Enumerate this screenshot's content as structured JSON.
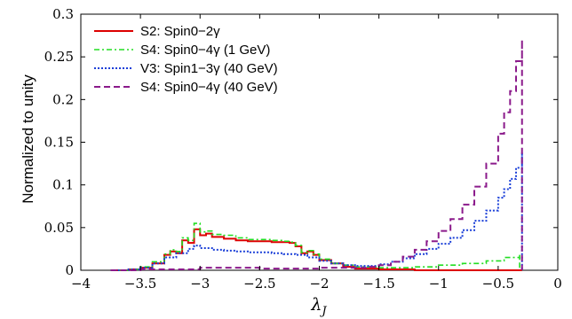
{
  "chart_data": {
    "type": "line",
    "title": "",
    "xlabel": "λ_J",
    "ylabel": "Normalized to unity",
    "xlim": [
      -4,
      0
    ],
    "ylim": [
      0,
      0.3
    ],
    "xticks": [
      -4,
      -3.5,
      -3,
      -2.5,
      -2,
      -1.5,
      -1,
      -0.5,
      0
    ],
    "xtick_labels": [
      "−4",
      "−3.5",
      "−3",
      "−2.5",
      "−2",
      "−1.5",
      "−1",
      "−0.5",
      "0"
    ],
    "yticks": [
      0,
      0.05,
      0.1,
      0.15,
      0.2,
      0.25,
      0.3
    ],
    "ytick_labels": [
      "0",
      "0.05",
      "0.1",
      "0.15",
      "0.2",
      "0.25",
      "0.3"
    ],
    "legend_position": "top-left",
    "grid": false,
    "series": [
      {
        "name": "S2: Spin0−2γ",
        "color": "#dd0000",
        "style": "solid",
        "x": [
          -3.75,
          -3.6,
          -3.5,
          -3.4,
          -3.3,
          -3.25,
          -3.2,
          -3.15,
          -3.1,
          -3.05,
          -3.0,
          -2.95,
          -2.9,
          -2.8,
          -2.7,
          -2.6,
          -2.5,
          -2.4,
          -2.3,
          -2.25,
          -2.2,
          -2.15,
          -2.1,
          -2.05,
          -2.0,
          -1.9,
          -1.8,
          -1.7,
          -1.5,
          -1.2,
          -1.0,
          -0.6,
          -0.3
        ],
        "y": [
          0.0,
          0.001,
          0.003,
          0.008,
          0.018,
          0.022,
          0.02,
          0.035,
          0.032,
          0.048,
          0.041,
          0.043,
          0.039,
          0.037,
          0.035,
          0.034,
          0.034,
          0.033,
          0.033,
          0.032,
          0.028,
          0.02,
          0.022,
          0.018,
          0.012,
          0.008,
          0.004,
          0.002,
          0.001,
          0.0,
          0.0,
          0.0,
          0.0
        ]
      },
      {
        "name": "S4: Spin0−4γ (1 GeV)",
        "color": "#22dd22",
        "style": "dashdot",
        "x": [
          -3.75,
          -3.6,
          -3.5,
          -3.4,
          -3.3,
          -3.25,
          -3.2,
          -3.15,
          -3.1,
          -3.05,
          -3.0,
          -2.95,
          -2.9,
          -2.8,
          -2.7,
          -2.6,
          -2.5,
          -2.4,
          -2.3,
          -2.25,
          -2.2,
          -2.15,
          -2.1,
          -2.05,
          -2.0,
          -1.9,
          -1.8,
          -1.7,
          -1.5,
          -1.2,
          -1.0,
          -0.8,
          -0.6,
          -0.45,
          -0.32
        ],
        "y": [
          0.0,
          0.001,
          0.004,
          0.01,
          0.019,
          0.024,
          0.022,
          0.038,
          0.035,
          0.055,
          0.045,
          0.046,
          0.042,
          0.041,
          0.038,
          0.036,
          0.036,
          0.035,
          0.034,
          0.033,
          0.029,
          0.021,
          0.023,
          0.019,
          0.013,
          0.008,
          0.006,
          0.004,
          0.003,
          0.004,
          0.006,
          0.008,
          0.011,
          0.015,
          0.018
        ]
      },
      {
        "name": "V3: Spin1−3γ (40 GeV)",
        "color": "#1a3fd8",
        "style": "dotted",
        "x": [
          -3.75,
          -3.6,
          -3.5,
          -3.4,
          -3.3,
          -3.2,
          -3.1,
          -3.05,
          -3.0,
          -2.9,
          -2.8,
          -2.7,
          -2.6,
          -2.5,
          -2.4,
          -2.3,
          -2.2,
          -2.1,
          -2.0,
          -1.9,
          -1.8,
          -1.7,
          -1.6,
          -1.5,
          -1.4,
          -1.3,
          -1.2,
          -1.1,
          -1.0,
          -0.9,
          -0.8,
          -0.7,
          -0.6,
          -0.5,
          -0.45,
          -0.4,
          -0.35,
          -0.3
        ],
        "y": [
          0.0,
          0.001,
          0.003,
          0.008,
          0.015,
          0.02,
          0.025,
          0.029,
          0.026,
          0.024,
          0.023,
          0.022,
          0.021,
          0.021,
          0.02,
          0.019,
          0.018,
          0.015,
          0.011,
          0.008,
          0.006,
          0.005,
          0.005,
          0.007,
          0.01,
          0.014,
          0.019,
          0.025,
          0.031,
          0.038,
          0.047,
          0.058,
          0.07,
          0.085,
          0.095,
          0.107,
          0.12,
          0.138
        ]
      },
      {
        "name": "S4: Spin0−4γ (40 GeV)",
        "color": "#8b1a8b",
        "style": "dashed",
        "x": [
          -3.75,
          -3.5,
          -3.0,
          -2.5,
          -2.0,
          -1.8,
          -1.6,
          -1.5,
          -1.4,
          -1.3,
          -1.2,
          -1.1,
          -1.0,
          -0.9,
          -0.8,
          -0.7,
          -0.6,
          -0.5,
          -0.45,
          -0.4,
          -0.35,
          -0.3
        ],
        "y": [
          0.0,
          0.001,
          0.003,
          0.002,
          0.003,
          0.003,
          0.004,
          0.006,
          0.01,
          0.016,
          0.024,
          0.034,
          0.046,
          0.06,
          0.077,
          0.098,
          0.125,
          0.16,
          0.185,
          0.21,
          0.245,
          0.27
        ]
      }
    ]
  }
}
